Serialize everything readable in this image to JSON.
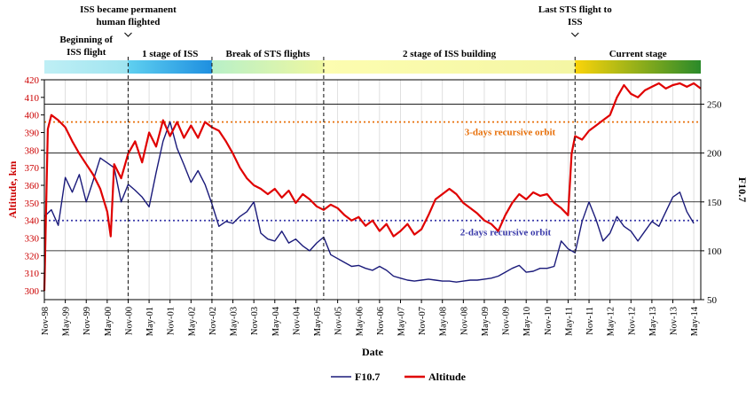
{
  "chart_data": {
    "type": "line",
    "x_label": "Date",
    "y_left_label": "Altitude, km",
    "y_right_label": "F10.7",
    "y_left_range": [
      295,
      420
    ],
    "y_left_ticks": [
      300,
      310,
      320,
      330,
      340,
      350,
      360,
      370,
      380,
      390,
      400,
      410,
      420
    ],
    "y_right_range": [
      50,
      275
    ],
    "y_right_ticks": [
      50,
      100,
      150,
      200,
      250
    ],
    "x_range": [
      "1998-11",
      "2014-07"
    ],
    "x_tick_labels": [
      "Nov-98",
      "May-99",
      "Nov-99",
      "May-00",
      "Nov-00",
      "May-01",
      "Nov-01",
      "May-02",
      "Nov-02",
      "May-03",
      "Nov-03",
      "May-04",
      "Nov-04",
      "May-05",
      "Nov-05",
      "May-06",
      "Nov-06",
      "May-07",
      "Nov-07",
      "May-08",
      "Nov-08",
      "May-09",
      "Nov-09",
      "May-10",
      "Nov-10",
      "May-11",
      "Nov-11",
      "May-12",
      "Nov-12",
      "May-13",
      "Nov-13",
      "May-14"
    ],
    "grid": true,
    "legend_position": "bottom-center",
    "series": [
      {
        "name": "F10.7",
        "axis": "right",
        "color": "#1a1a7a",
        "points": [
          [
            "1998-11",
            135
          ],
          [
            "1999-01",
            142
          ],
          [
            "1999-03",
            126
          ],
          [
            "1999-05",
            175
          ],
          [
            "1999-07",
            160
          ],
          [
            "1999-09",
            178
          ],
          [
            "1999-11",
            150
          ],
          [
            "2000-01",
            172
          ],
          [
            "2000-03",
            195
          ],
          [
            "2000-05",
            190
          ],
          [
            "2000-07",
            185
          ],
          [
            "2000-09",
            150
          ],
          [
            "2000-11",
            168
          ],
          [
            "2001-01",
            162
          ],
          [
            "2001-03",
            155
          ],
          [
            "2001-05",
            145
          ],
          [
            "2001-07",
            180
          ],
          [
            "2001-09",
            212
          ],
          [
            "2001-11",
            232
          ],
          [
            "2002-01",
            205
          ],
          [
            "2002-03",
            188
          ],
          [
            "2002-05",
            170
          ],
          [
            "2002-07",
            182
          ],
          [
            "2002-09",
            168
          ],
          [
            "2002-11",
            148
          ],
          [
            "2003-01",
            125
          ],
          [
            "2003-03",
            130
          ],
          [
            "2003-05",
            128
          ],
          [
            "2003-07",
            135
          ],
          [
            "2003-09",
            140
          ],
          [
            "2003-11",
            150
          ],
          [
            "2004-01",
            118
          ],
          [
            "2004-03",
            112
          ],
          [
            "2004-05",
            110
          ],
          [
            "2004-07",
            120
          ],
          [
            "2004-09",
            108
          ],
          [
            "2004-11",
            112
          ],
          [
            "2005-01",
            105
          ],
          [
            "2005-03",
            100
          ],
          [
            "2005-05",
            108
          ],
          [
            "2005-07",
            114
          ],
          [
            "2005-09",
            96
          ],
          [
            "2005-11",
            92
          ],
          [
            "2006-01",
            88
          ],
          [
            "2006-03",
            84
          ],
          [
            "2006-05",
            85
          ],
          [
            "2006-07",
            82
          ],
          [
            "2006-09",
            80
          ],
          [
            "2006-11",
            84
          ],
          [
            "2007-01",
            80
          ],
          [
            "2007-03",
            74
          ],
          [
            "2007-05",
            72
          ],
          [
            "2007-07",
            70
          ],
          [
            "2007-09",
            69
          ],
          [
            "2007-11",
            70
          ],
          [
            "2008-01",
            71
          ],
          [
            "2008-03",
            70
          ],
          [
            "2008-05",
            69
          ],
          [
            "2008-07",
            69
          ],
          [
            "2008-09",
            68
          ],
          [
            "2008-11",
            69
          ],
          [
            "2009-01",
            70
          ],
          [
            "2009-03",
            70
          ],
          [
            "2009-05",
            71
          ],
          [
            "2009-07",
            72
          ],
          [
            "2009-09",
            74
          ],
          [
            "2009-11",
            78
          ],
          [
            "2010-01",
            82
          ],
          [
            "2010-03",
            85
          ],
          [
            "2010-05",
            78
          ],
          [
            "2010-07",
            79
          ],
          [
            "2010-09",
            82
          ],
          [
            "2010-11",
            82
          ],
          [
            "2011-01",
            84
          ],
          [
            "2011-03",
            110
          ],
          [
            "2011-05",
            102
          ],
          [
            "2011-07",
            98
          ],
          [
            "2011-09",
            130
          ],
          [
            "2011-11",
            150
          ],
          [
            "2012-01",
            132
          ],
          [
            "2012-03",
            110
          ],
          [
            "2012-05",
            118
          ],
          [
            "2012-07",
            135
          ],
          [
            "2012-09",
            125
          ],
          [
            "2012-11",
            120
          ],
          [
            "2013-01",
            110
          ],
          [
            "2013-03",
            120
          ],
          [
            "2013-05",
            130
          ],
          [
            "2013-07",
            125
          ],
          [
            "2013-09",
            140
          ],
          [
            "2013-11",
            155
          ],
          [
            "2014-01",
            160
          ],
          [
            "2014-03",
            140
          ],
          [
            "2014-05",
            128
          ]
        ]
      },
      {
        "name": "Altitude",
        "axis": "left",
        "color": "#e00000",
        "points": [
          [
            "1998-11",
            300
          ],
          [
            "1998-12",
            392
          ],
          [
            "1999-01",
            400
          ],
          [
            "1999-03",
            397
          ],
          [
            "1999-05",
            393
          ],
          [
            "1999-07",
            385
          ],
          [
            "1999-09",
            378
          ],
          [
            "1999-11",
            372
          ],
          [
            "2000-01",
            366
          ],
          [
            "2000-03",
            358
          ],
          [
            "2000-05",
            345
          ],
          [
            "2000-06",
            331
          ],
          [
            "2000-07",
            372
          ],
          [
            "2000-09",
            364
          ],
          [
            "2000-11",
            378
          ],
          [
            "2001-01",
            385
          ],
          [
            "2001-03",
            373
          ],
          [
            "2001-05",
            390
          ],
          [
            "2001-07",
            382
          ],
          [
            "2001-09",
            397
          ],
          [
            "2001-11",
            388
          ],
          [
            "2002-01",
            396
          ],
          [
            "2002-03",
            387
          ],
          [
            "2002-05",
            394
          ],
          [
            "2002-07",
            387
          ],
          [
            "2002-09",
            396
          ],
          [
            "2002-11",
            393
          ],
          [
            "2003-01",
            391
          ],
          [
            "2003-03",
            385
          ],
          [
            "2003-05",
            378
          ],
          [
            "2003-07",
            370
          ],
          [
            "2003-09",
            364
          ],
          [
            "2003-11",
            360
          ],
          [
            "2004-01",
            358
          ],
          [
            "2004-03",
            355
          ],
          [
            "2004-05",
            358
          ],
          [
            "2004-07",
            353
          ],
          [
            "2004-09",
            357
          ],
          [
            "2004-11",
            350
          ],
          [
            "2005-01",
            355
          ],
          [
            "2005-03",
            352
          ],
          [
            "2005-05",
            348
          ],
          [
            "2005-07",
            346
          ],
          [
            "2005-09",
            349
          ],
          [
            "2005-11",
            347
          ],
          [
            "2006-01",
            343
          ],
          [
            "2006-03",
            340
          ],
          [
            "2006-05",
            342
          ],
          [
            "2006-07",
            337
          ],
          [
            "2006-09",
            340
          ],
          [
            "2006-11",
            334
          ],
          [
            "2007-01",
            338
          ],
          [
            "2007-03",
            331
          ],
          [
            "2007-05",
            334
          ],
          [
            "2007-07",
            338
          ],
          [
            "2007-09",
            332
          ],
          [
            "2007-11",
            335
          ],
          [
            "2008-01",
            343
          ],
          [
            "2008-03",
            352
          ],
          [
            "2008-05",
            355
          ],
          [
            "2008-07",
            358
          ],
          [
            "2008-09",
            355
          ],
          [
            "2008-11",
            350
          ],
          [
            "2009-01",
            347
          ],
          [
            "2009-03",
            344
          ],
          [
            "2009-05",
            340
          ],
          [
            "2009-07",
            338
          ],
          [
            "2009-09",
            334
          ],
          [
            "2009-11",
            343
          ],
          [
            "2010-01",
            350
          ],
          [
            "2010-03",
            355
          ],
          [
            "2010-05",
            352
          ],
          [
            "2010-07",
            356
          ],
          [
            "2010-09",
            354
          ],
          [
            "2010-11",
            355
          ],
          [
            "2011-01",
            350
          ],
          [
            "2011-03",
            347
          ],
          [
            "2011-05",
            343
          ],
          [
            "2011-06",
            378
          ],
          [
            "2011-07",
            388
          ],
          [
            "2011-09",
            386
          ],
          [
            "2011-11",
            391
          ],
          [
            "2012-01",
            394
          ],
          [
            "2012-03",
            397
          ],
          [
            "2012-05",
            400
          ],
          [
            "2012-07",
            410
          ],
          [
            "2012-09",
            417
          ],
          [
            "2012-11",
            412
          ],
          [
            "2013-01",
            410
          ],
          [
            "2013-03",
            414
          ],
          [
            "2013-05",
            416
          ],
          [
            "2013-07",
            418
          ],
          [
            "2013-09",
            415
          ],
          [
            "2013-11",
            417
          ],
          [
            "2014-01",
            418
          ],
          [
            "2014-03",
            416
          ],
          [
            "2014-05",
            418
          ],
          [
            "2014-07",
            415
          ]
        ]
      }
    ],
    "reference_lines": [
      {
        "label": "3-days recursive orbit",
        "axis": "left",
        "value": 396,
        "color": "#e8700a"
      },
      {
        "label": "2-days recursive orbit",
        "axis": "left",
        "value": 340,
        "color": "#3a3aaa"
      }
    ],
    "event_lines": [
      {
        "date": "2000-11",
        "label": "ISS became permanent\nhuman flighted"
      },
      {
        "date": "2002-11",
        "label": ""
      },
      {
        "date": "2005-07",
        "label": ""
      },
      {
        "date": "2011-07",
        "label": "Last STS flight to\nISS"
      }
    ],
    "stages": [
      {
        "label": "Beginning of\nISS flight",
        "start": "1998-11",
        "end": "2000-11",
        "colors": [
          "#bfeff5",
          "#9fe4f0"
        ]
      },
      {
        "label": "1 stage of ISS",
        "start": "2000-11",
        "end": "2002-11",
        "colors": [
          "#5fd0f0",
          "#1e8fe0"
        ]
      },
      {
        "label": "Break of STS flights",
        "start": "2002-11",
        "end": "2005-07",
        "colors": [
          "#b8f0c8",
          "#eef7a0"
        ]
      },
      {
        "label": "2 stage of ISS building",
        "start": "2005-07",
        "end": "2011-07",
        "colors": [
          "#fdfdb0",
          "#f4f6a4"
        ]
      },
      {
        "label": "Current stage",
        "start": "2011-07",
        "end": "2014-07",
        "colors": [
          "#fbd40a",
          "#2a8a2a"
        ]
      }
    ]
  }
}
